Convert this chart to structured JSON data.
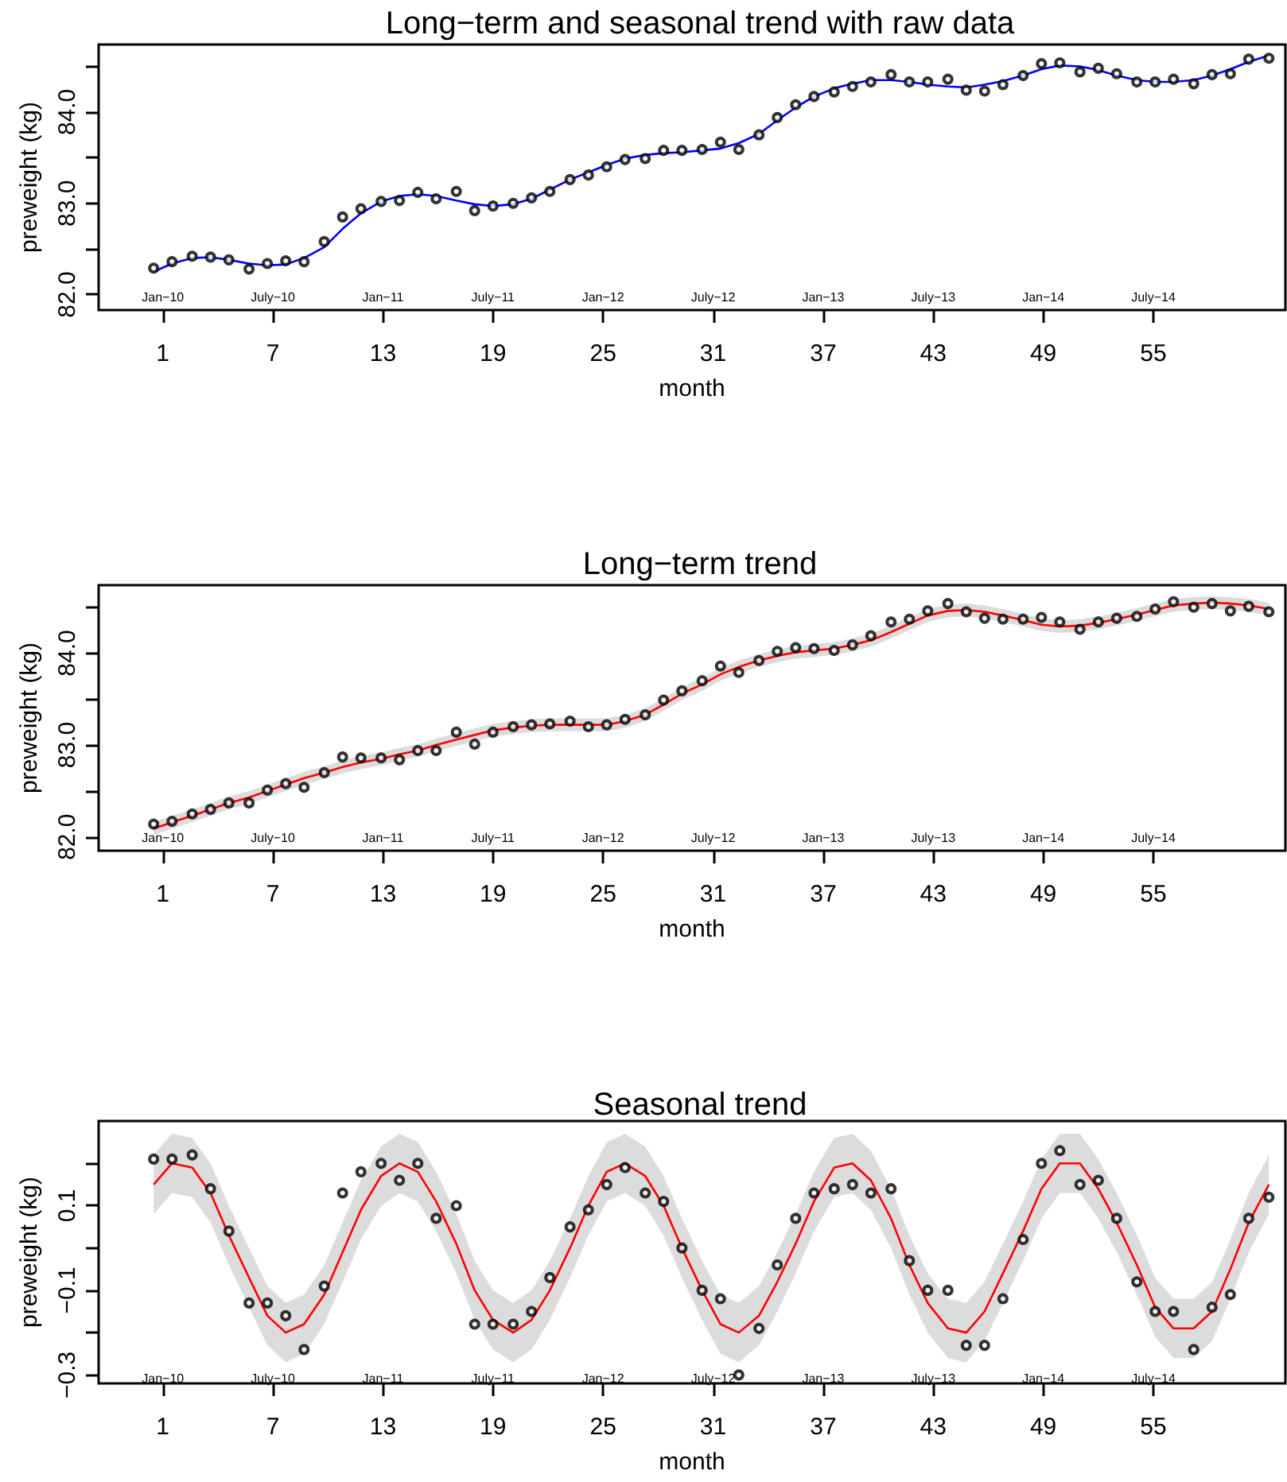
{
  "chart_data": [
    {
      "type": "scatter",
      "title": "Long−term and seasonal trend with raw data",
      "xlabel": "month",
      "ylabel": "preweight (kg)",
      "x": [
        0.5,
        1.5,
        2.6,
        3.6,
        4.6,
        5.7,
        6.7,
        7.7,
        8.7,
        9.8,
        10.8,
        11.8,
        12.9,
        13.9,
        14.9,
        15.9,
        17.0,
        18.0,
        19.0,
        20.1,
        21.1,
        22.1,
        23.2,
        24.2,
        25.2,
        26.2,
        27.3,
        28.3,
        29.3,
        30.4,
        31.4,
        32.4,
        33.5,
        34.5,
        35.5,
        36.5,
        37.6,
        38.6,
        39.6,
        40.7,
        41.7,
        42.7,
        43.8,
        44.8,
        45.8,
        46.8,
        47.9,
        48.9,
        49.9,
        51.0,
        52.0,
        53.0,
        54.1,
        55.1,
        56.1,
        57.2,
        58.2,
        59.2,
        60.2,
        61.3
      ],
      "xlim": [
        -2.5,
        62.2
      ],
      "xticks": [
        1,
        7,
        13,
        19,
        25,
        31,
        37,
        43,
        49,
        55
      ],
      "ylim": [
        81.83,
        84.74
      ],
      "yticks": [
        {
          "value": 82,
          "label": "82.0"
        },
        {
          "value": 82.5,
          "label": null
        },
        {
          "value": 83,
          "label": "83.0"
        },
        {
          "value": 83.5,
          "label": null
        },
        {
          "value": 84,
          "label": "84.0"
        },
        {
          "value": 84.5,
          "label": null
        }
      ],
      "annotations": [
        "Jan−10",
        "July−10",
        "Jan−11",
        "July−11",
        "Jan−12",
        "July−12",
        "Jan−13",
        "July−13",
        "Jan−14",
        "July−14"
      ],
      "series": [
        {
          "color": "#000000",
          "marker": "circle",
          "values": [
            82.29,
            82.36,
            82.42,
            82.41,
            82.38,
            82.28,
            82.34,
            82.37,
            82.36,
            82.58,
            82.85,
            82.94,
            83.02,
            83.03,
            83.12,
            83.05,
            83.13,
            82.92,
            82.97,
            83.0,
            83.06,
            83.13,
            83.26,
            83.31,
            83.4,
            83.48,
            83.49,
            83.58,
            83.58,
            83.59,
            83.67,
            83.59,
            83.75,
            83.94,
            84.08,
            84.17,
            84.22,
            84.28,
            84.33,
            84.41,
            84.33,
            84.33,
            84.36,
            84.24,
            84.23,
            84.3,
            84.4,
            84.53,
            84.54,
            84.44,
            84.48,
            84.42,
            84.33,
            84.33,
            84.36,
            84.31,
            84.41,
            84.42,
            84.58,
            84.59
          ]
        },
        {
          "type": "line",
          "color": "#0000ff",
          "marker": "none",
          "values": [
            82.25,
            82.34,
            82.4,
            82.41,
            82.38,
            82.34,
            82.32,
            82.33,
            82.4,
            82.52,
            82.72,
            82.89,
            83.02,
            83.08,
            83.1,
            83.08,
            83.03,
            82.99,
            82.97,
            82.99,
            83.05,
            83.15,
            83.26,
            83.34,
            83.42,
            83.49,
            83.53,
            83.55,
            83.56,
            83.58,
            83.6,
            83.66,
            83.76,
            83.91,
            84.05,
            84.17,
            84.26,
            84.31,
            84.35,
            84.35,
            84.33,
            84.3,
            84.28,
            84.27,
            84.3,
            84.34,
            84.4,
            84.47,
            84.51,
            84.5,
            84.46,
            84.4,
            84.35,
            84.33,
            84.33,
            84.35,
            84.4,
            84.47,
            84.55,
            84.62
          ]
        }
      ]
    },
    {
      "type": "scatter",
      "title": "Long−term trend",
      "xlabel": "month",
      "ylabel": "preweight (kg)",
      "x": [
        0.5,
        1.5,
        2.6,
        3.6,
        4.6,
        5.7,
        6.7,
        7.7,
        8.7,
        9.8,
        10.8,
        11.8,
        12.9,
        13.9,
        14.9,
        15.9,
        17.0,
        18.0,
        19.0,
        20.1,
        21.1,
        22.1,
        23.2,
        24.2,
        25.2,
        26.2,
        27.3,
        28.3,
        29.3,
        30.4,
        31.4,
        32.4,
        33.5,
        34.5,
        35.5,
        36.5,
        37.6,
        38.6,
        39.6,
        40.7,
        41.7,
        42.7,
        43.8,
        44.8,
        45.8,
        46.8,
        47.9,
        48.9,
        49.9,
        51.0,
        52.0,
        53.0,
        54.1,
        55.1,
        56.1,
        57.2,
        58.2,
        59.2,
        60.2,
        61.3
      ],
      "xlim": [
        -2.5,
        62.2
      ],
      "xticks": [
        1,
        7,
        13,
        19,
        25,
        31,
        37,
        43,
        49,
        55
      ],
      "ylim": [
        81.85,
        84.74
      ],
      "yticks": [
        {
          "value": 82,
          "label": "82.0"
        },
        {
          "value": 82.5,
          "label": null
        },
        {
          "value": 83,
          "label": "83.0"
        },
        {
          "value": 83.5,
          "label": null
        },
        {
          "value": 84,
          "label": "84.0"
        },
        {
          "value": 84.5,
          "label": null
        }
      ],
      "annotations": [
        "Jan−10",
        "July−10",
        "Jan−11",
        "July−11",
        "Jan−12",
        "July−12",
        "Jan−13",
        "July−13",
        "Jan−14",
        "July−14"
      ],
      "series": [
        {
          "color": "#000000",
          "marker": "circle",
          "values": [
            82.14,
            82.17,
            82.25,
            82.3,
            82.37,
            82.37,
            82.51,
            82.58,
            82.54,
            82.7,
            82.87,
            82.86,
            82.86,
            82.84,
            82.94,
            82.94,
            83.14,
            83.01,
            83.14,
            83.2,
            83.22,
            83.23,
            83.26,
            83.2,
            83.22,
            83.28,
            83.33,
            83.49,
            83.59,
            83.7,
            83.86,
            83.79,
            83.92,
            84.02,
            84.06,
            84.05,
            84.03,
            84.09,
            84.19,
            84.34,
            84.37,
            84.46,
            84.54,
            84.45,
            84.38,
            84.37,
            84.37,
            84.39,
            84.34,
            84.26,
            84.34,
            84.38,
            84.4,
            84.48,
            84.56,
            84.5,
            84.54,
            84.46,
            84.51,
            84.45
          ]
        },
        {
          "type": "line",
          "color": "#ff0000",
          "marker": "none",
          "values": [
            82.09,
            82.16,
            82.23,
            82.3,
            82.37,
            82.43,
            82.5,
            82.57,
            82.64,
            82.7,
            82.76,
            82.81,
            82.85,
            82.9,
            82.94,
            83.0,
            83.06,
            83.11,
            83.16,
            83.19,
            83.21,
            83.22,
            83.22,
            83.22,
            83.22,
            83.26,
            83.33,
            83.44,
            83.56,
            83.66,
            83.77,
            83.85,
            83.92,
            83.97,
            84.01,
            84.03,
            84.05,
            84.09,
            84.14,
            84.23,
            84.32,
            84.41,
            84.46,
            84.47,
            84.45,
            84.41,
            84.36,
            84.31,
            84.29,
            84.3,
            84.33,
            84.37,
            84.42,
            84.47,
            84.52,
            84.54,
            84.55,
            84.54,
            84.52,
            84.48
          ],
          "lower": [
            82.02,
            82.09,
            82.16,
            82.23,
            82.3,
            82.36,
            82.43,
            82.5,
            82.57,
            82.63,
            82.69,
            82.74,
            82.78,
            82.83,
            82.87,
            82.93,
            82.99,
            83.04,
            83.09,
            83.12,
            83.14,
            83.15,
            83.15,
            83.15,
            83.15,
            83.19,
            83.26,
            83.37,
            83.49,
            83.59,
            83.7,
            83.78,
            83.85,
            83.9,
            83.94,
            83.96,
            83.98,
            84.02,
            84.07,
            84.16,
            84.25,
            84.34,
            84.39,
            84.4,
            84.38,
            84.34,
            84.29,
            84.24,
            84.22,
            84.23,
            84.26,
            84.3,
            84.35,
            84.4,
            84.45,
            84.47,
            84.48,
            84.47,
            84.45,
            84.41
          ],
          "upper": [
            82.16,
            82.23,
            82.3,
            82.37,
            82.44,
            82.5,
            82.57,
            82.64,
            82.71,
            82.77,
            82.83,
            82.88,
            82.92,
            82.97,
            83.01,
            83.07,
            83.13,
            83.18,
            83.23,
            83.26,
            83.28,
            83.29,
            83.29,
            83.29,
            83.29,
            83.33,
            83.4,
            83.51,
            83.63,
            83.73,
            83.84,
            83.92,
            83.99,
            84.04,
            84.08,
            84.1,
            84.12,
            84.16,
            84.21,
            84.3,
            84.39,
            84.48,
            84.53,
            84.54,
            84.52,
            84.48,
            84.43,
            84.38,
            84.36,
            84.37,
            84.4,
            84.44,
            84.49,
            84.54,
            84.59,
            84.61,
            84.62,
            84.61,
            84.59,
            84.55
          ]
        }
      ]
    },
    {
      "type": "scatter",
      "title": "Seasonal trend",
      "xlabel": "month",
      "ylabel": "preweight (kg)",
      "x": [
        0.5,
        1.5,
        2.6,
        3.6,
        4.6,
        5.7,
        6.7,
        7.7,
        8.7,
        9.8,
        10.8,
        11.8,
        12.9,
        13.9,
        14.9,
        15.9,
        17.0,
        18.0,
        19.0,
        20.1,
        21.1,
        22.1,
        23.2,
        24.2,
        25.2,
        26.2,
        27.3,
        28.3,
        29.3,
        30.4,
        31.4,
        32.4,
        33.5,
        34.5,
        35.5,
        36.5,
        37.6,
        38.6,
        39.6,
        40.7,
        41.7,
        42.7,
        43.8,
        44.8,
        45.8,
        46.8,
        47.9,
        48.9,
        49.9,
        51.0,
        52.0,
        53.0,
        54.1,
        55.1,
        56.1,
        57.2,
        58.2,
        59.2,
        60.2,
        61.3
      ],
      "xlim": [
        -2.5,
        62.2
      ],
      "xticks": [
        1,
        7,
        13,
        19,
        25,
        31,
        37,
        43,
        49,
        55
      ],
      "ylim": [
        -0.32,
        0.3
      ],
      "yticks": [
        {
          "value": -0.3,
          "label": "−0.3"
        },
        {
          "value": -0.2,
          "label": null
        },
        {
          "value": -0.1,
          "label": "−0.1"
        },
        {
          "value": 0,
          "label": null
        },
        {
          "value": 0.1,
          "label": "0.1"
        },
        {
          "value": 0.2,
          "label": null
        }
      ],
      "annotations": [
        "Jan−10",
        "July−10",
        "Jan−11",
        "July−11",
        "Jan−12",
        "July−12",
        "Jan−13",
        "July−13",
        "Jan−14",
        "July−14"
      ],
      "series": [
        {
          "color": "#000000",
          "marker": "circle",
          "values": [
            0.21,
            0.21,
            0.22,
            0.14,
            0.04,
            -0.13,
            -0.13,
            -0.16,
            -0.24,
            -0.09,
            0.13,
            0.18,
            0.2,
            0.16,
            0.2,
            0.07,
            0.1,
            -0.18,
            -0.18,
            -0.18,
            -0.15,
            -0.07,
            0.05,
            0.09,
            0.15,
            0.19,
            0.13,
            0.11,
            0.0,
            -0.1,
            -0.12,
            -0.3,
            -0.19,
            -0.04,
            0.07,
            0.13,
            0.14,
            0.15,
            0.13,
            0.14,
            -0.03,
            -0.1,
            -0.1,
            -0.23,
            -0.23,
            -0.12,
            0.02,
            0.2,
            0.23,
            0.15,
            0.16,
            0.07,
            -0.08,
            -0.15,
            -0.15,
            -0.24,
            -0.14,
            -0.11,
            0.07,
            0.12
          ]
        },
        {
          "type": "line",
          "color": "#ff0000",
          "marker": "none",
          "values": [
            0.15,
            0.2,
            0.19,
            0.13,
            0.03,
            -0.07,
            -0.16,
            -0.2,
            -0.18,
            -0.11,
            -0.01,
            0.09,
            0.17,
            0.2,
            0.18,
            0.11,
            0.01,
            -0.1,
            -0.17,
            -0.2,
            -0.17,
            -0.1,
            0.0,
            0.1,
            0.18,
            0.2,
            0.17,
            0.1,
            0.0,
            -0.1,
            -0.18,
            -0.2,
            -0.16,
            -0.08,
            0.01,
            0.11,
            0.19,
            0.2,
            0.16,
            0.07,
            -0.04,
            -0.13,
            -0.19,
            -0.2,
            -0.15,
            -0.06,
            0.04,
            0.14,
            0.2,
            0.2,
            0.14,
            0.06,
            -0.04,
            -0.14,
            -0.19,
            -0.19,
            -0.15,
            -0.05,
            0.06,
            0.15
          ],
          "lower": [
            0.08,
            0.13,
            0.12,
            0.06,
            -0.04,
            -0.14,
            -0.23,
            -0.27,
            -0.25,
            -0.18,
            -0.08,
            0.02,
            0.1,
            0.13,
            0.11,
            0.04,
            -0.06,
            -0.17,
            -0.24,
            -0.27,
            -0.24,
            -0.17,
            -0.07,
            0.03,
            0.11,
            0.13,
            0.1,
            0.03,
            -0.07,
            -0.17,
            -0.25,
            -0.27,
            -0.23,
            -0.15,
            -0.06,
            0.04,
            0.12,
            0.13,
            0.09,
            0.0,
            -0.11,
            -0.2,
            -0.26,
            -0.27,
            -0.22,
            -0.13,
            -0.03,
            0.07,
            0.13,
            0.13,
            0.07,
            -0.01,
            -0.11,
            -0.21,
            -0.26,
            -0.26,
            -0.22,
            -0.12,
            -0.01,
            0.08
          ],
          "upper": [
            0.22,
            0.27,
            0.26,
            0.2,
            0.1,
            0.0,
            -0.09,
            -0.13,
            -0.11,
            -0.04,
            0.06,
            0.16,
            0.24,
            0.27,
            0.25,
            0.18,
            0.08,
            -0.03,
            -0.1,
            -0.13,
            -0.1,
            -0.03,
            0.07,
            0.17,
            0.25,
            0.27,
            0.24,
            0.17,
            0.07,
            -0.03,
            -0.11,
            -0.13,
            -0.09,
            -0.01,
            0.08,
            0.18,
            0.26,
            0.27,
            0.23,
            0.14,
            0.03,
            -0.06,
            -0.12,
            -0.13,
            -0.08,
            0.01,
            0.11,
            0.21,
            0.27,
            0.27,
            0.21,
            0.13,
            0.03,
            -0.07,
            -0.12,
            -0.12,
            -0.08,
            0.02,
            0.13,
            0.22
          ]
        }
      ]
    }
  ]
}
